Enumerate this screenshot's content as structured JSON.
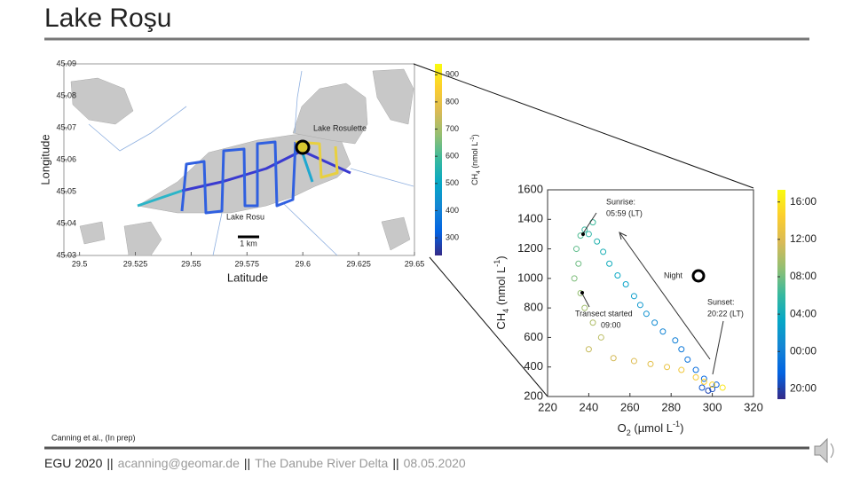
{
  "title": "Lake Roşu",
  "map": {
    "xlim": [
      29.493,
      29.65
    ],
    "ylim": [
      45.03,
      45.09
    ],
    "xticks": [
      29.5,
      29.525,
      29.55,
      29.575,
      29.6,
      29.625,
      29.65
    ],
    "yticks": [
      45.03,
      45.04,
      45.05,
      45.06,
      45.07,
      45.08,
      45.09
    ],
    "xlabel": "Latitude",
    "ylabel": "Longitude",
    "lake_labels": [
      "Lake Rosulette",
      "Lake Rosu"
    ],
    "scale": "1 km",
    "colorbar": {
      "clim": [
        235,
        940
      ],
      "ticks": [
        300,
        400,
        500,
        600,
        700,
        800,
        900
      ],
      "label": {
        "base": "CH",
        "sub": "4",
        "mid": " (nmol L",
        "sup": "-1",
        "end": ")"
      }
    }
  },
  "scatter": {
    "type": "scatter",
    "xlim": [
      220,
      320
    ],
    "ylim": [
      200,
      1600
    ],
    "xticks": [
      220,
      240,
      260,
      280,
      300,
      320
    ],
    "yticks": [
      200,
      400,
      600,
      800,
      1000,
      1200,
      1400,
      1600
    ],
    "xlabel": {
      "base": "O",
      "sub": "2",
      "mid": " (µmol L",
      "sup": "-1",
      "end": ")"
    },
    "ylabel": {
      "base": "CH",
      "sub": "4",
      "mid": " (nmol L",
      "sup": "-1",
      "end": ")"
    },
    "colorbar": {
      "clim": [
        18.9,
        41.3
      ],
      "ticks": [
        {
          "value": 20,
          "label": "20:00"
        },
        {
          "value": 24,
          "label": "00:00"
        },
        {
          "value": 28,
          "label": "04:00"
        },
        {
          "value": 32,
          "label": "08:00"
        },
        {
          "value": 36,
          "label": "12:00"
        },
        {
          "value": 40,
          "label": "16:00"
        }
      ]
    },
    "annotations": {
      "sunrise": [
        "Sunrise:",
        "05:59 (LT)"
      ],
      "night": "Night",
      "sunset": [
        "Sunset:",
        "20:22 (LT)"
      ],
      "start": [
        "Transect started",
        "09:00"
      ]
    },
    "points": [
      [
        298,
        240,
        20.2
      ],
      [
        300,
        250,
        20.5
      ],
      [
        295,
        260,
        21
      ],
      [
        302,
        280,
        21.5
      ],
      [
        296,
        320,
        22
      ],
      [
        292,
        380,
        22.5
      ],
      [
        288,
        450,
        23
      ],
      [
        285,
        520,
        23.5
      ],
      [
        282,
        580,
        24
      ],
      [
        276,
        640,
        24.5
      ],
      [
        272,
        700,
        25
      ],
      [
        268,
        760,
        25.5
      ],
      [
        265,
        820,
        26
      ],
      [
        262,
        880,
        26.5
      ],
      [
        258,
        960,
        27
      ],
      [
        254,
        1020,
        27.5
      ],
      [
        250,
        1100,
        28
      ],
      [
        247,
        1180,
        28.5
      ],
      [
        244,
        1250,
        29
      ],
      [
        240,
        1300,
        29.5
      ],
      [
        238,
        1330,
        30
      ],
      [
        242,
        1380,
        30.2
      ],
      [
        236,
        1290,
        30.8
      ],
      [
        234,
        1200,
        31.3
      ],
      [
        235,
        1100,
        31.8
      ],
      [
        233,
        1000,
        32.3
      ],
      [
        236,
        900,
        33
      ],
      [
        238,
        800,
        33.5
      ],
      [
        242,
        700,
        34
      ],
      [
        246,
        600,
        34.5
      ],
      [
        240,
        520,
        35
      ],
      [
        252,
        460,
        35.5
      ],
      [
        262,
        440,
        36
      ],
      [
        270,
        420,
        36.5
      ],
      [
        278,
        400,
        37
      ],
      [
        285,
        380,
        37.5
      ],
      [
        292,
        330,
        38
      ],
      [
        296,
        300,
        38.5
      ],
      [
        300,
        280,
        39
      ],
      [
        305,
        260,
        40
      ]
    ]
  },
  "citation": "Canning et al., (In prep)",
  "footer": [
    "EGU 2020",
    "||",
    "acanning@geomar.de",
    "||",
    "The Danube River Delta",
    "||",
    "08.05.2020"
  ]
}
